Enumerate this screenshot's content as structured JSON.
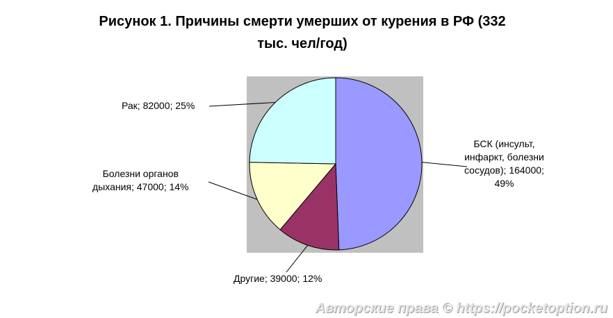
{
  "chart_data": {
    "type": "pie",
    "title_line1": "Рисунок 1. Причины смерти умерших от курения в РФ (332",
    "title_line2": "тыс. чел/год)",
    "slices": [
      {
        "label_lines": [
          "БСК (инсульт,",
          "инфаркт, болезни",
          "сосудов); 164000;",
          "49%"
        ],
        "value": 164000,
        "percent": 49,
        "color": "#9999ff"
      },
      {
        "label_lines": [
          "Другие; 39000; 12%"
        ],
        "value": 39000,
        "percent": 12,
        "color": "#993366"
      },
      {
        "label_lines": [
          "Болезни органов",
          "дыхания; 47000; 14%"
        ],
        "value": 47000,
        "percent": 14,
        "color": "#ffffcc"
      },
      {
        "label_lines": [
          "Рак; 82000; 25%"
        ],
        "value": 82000,
        "percent": 25,
        "color": "#ccffff"
      }
    ],
    "plot_background": "#c0c0c0",
    "legend": "none"
  },
  "watermark": "Авторские права © https://pocketoption.ru"
}
